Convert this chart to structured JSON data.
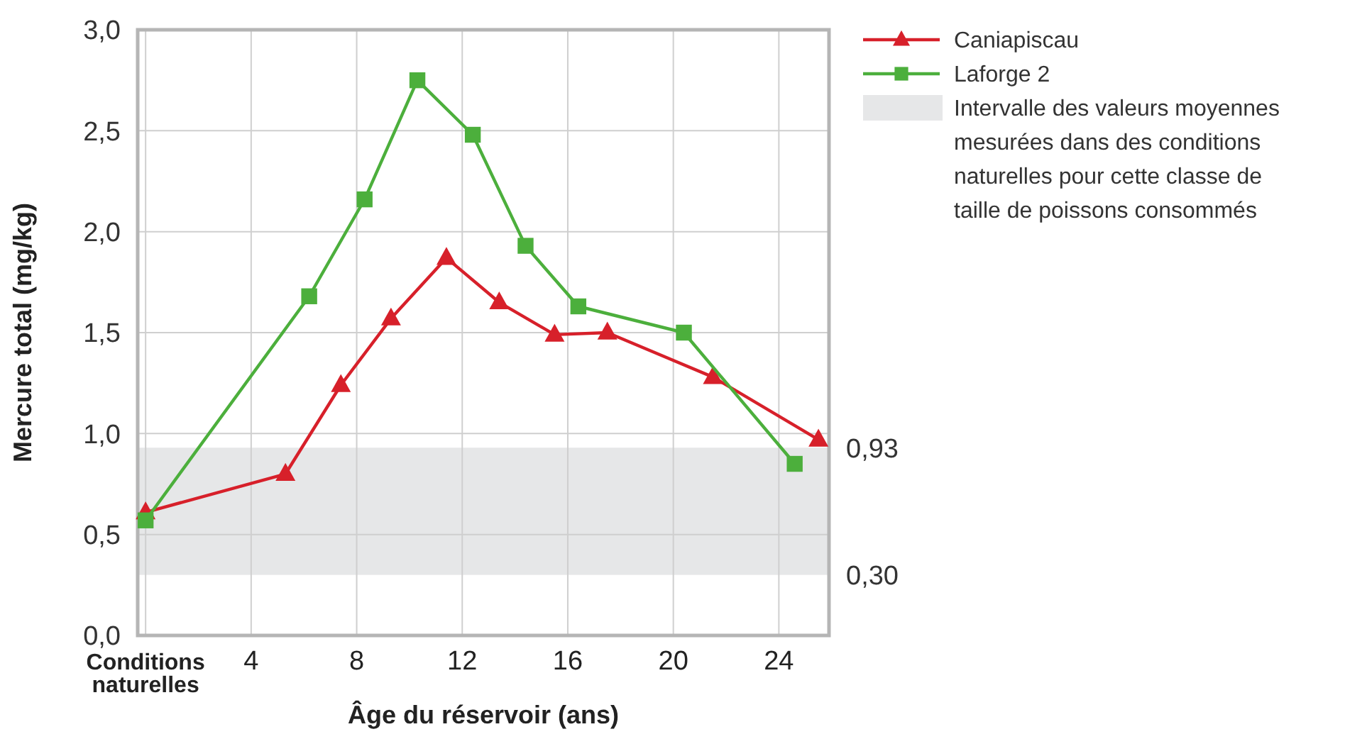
{
  "chart_data": {
    "type": "line",
    "xlabel": "Âge du réservoir (ans)",
    "ylabel": "Mercure total (mg/kg)",
    "xlim": [
      -0.3,
      25.9
    ],
    "xticks": [
      {
        "value": 0,
        "label": "Conditions naturelles"
      },
      4,
      8,
      12,
      16,
      20,
      24
    ],
    "ylim": [
      0,
      3
    ],
    "yticks": [
      {
        "value": 0,
        "label": "0,0"
      },
      {
        "value": 0.5,
        "label": "0,5"
      },
      {
        "value": 1,
        "label": "1,0"
      },
      {
        "value": 1.5,
        "label": "1,5"
      },
      {
        "value": 2,
        "label": "2,0"
      },
      {
        "value": 2.5,
        "label": "2,5"
      },
      {
        "value": 3,
        "label": "3,0"
      }
    ],
    "grid": true,
    "legend": "right",
    "line_style": "solid",
    "series": [
      {
        "name": "Caniapiscau",
        "color": "#d7202a",
        "marker": "triangle",
        "x": [
          0,
          5.3,
          7.4,
          9.3,
          11.4,
          13.4,
          15.5,
          17.5,
          21.5,
          25.5
        ],
        "values": [
          0.61,
          0.8,
          1.24,
          1.57,
          1.87,
          1.65,
          1.49,
          1.5,
          1.28,
          0.97
        ]
      },
      {
        "name": "Laforge 2",
        "color": "#4caf3c",
        "marker": "square",
        "x": [
          0,
          6.2,
          8.3,
          10.3,
          12.4,
          14.4,
          16.4,
          20.4,
          24.6
        ],
        "values": [
          0.57,
          1.68,
          2.16,
          2.75,
          2.48,
          1.93,
          1.63,
          1.5,
          0.85
        ]
      }
    ],
    "bands": [
      {
        "axis": "y",
        "from": 0.3,
        "to": 0.93,
        "color": "#e6e7e8",
        "label": "Intervalle des valeurs moyennes mesurées dans des conditions naturelles pour cette classe de taille de poissons consommés"
      }
    ],
    "annotations": [
      "0,93",
      "0,30"
    ]
  }
}
